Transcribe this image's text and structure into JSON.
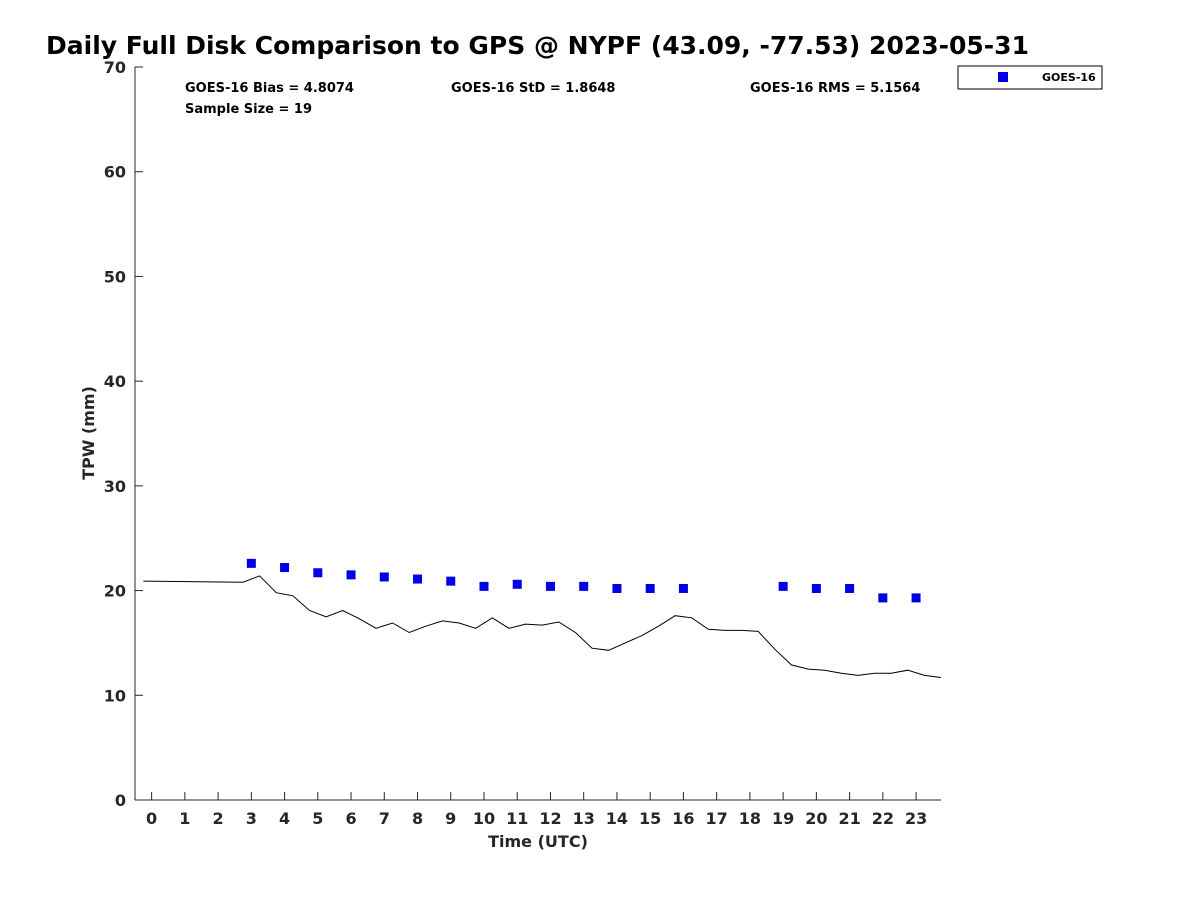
{
  "chart_data": {
    "type": "scatter",
    "title": "Daily Full Disk Comparison to GPS @ NYPF (43.09, -77.53) 2023-05-31",
    "xlabel": "Time (UTC)",
    "ylabel": "TPW (mm)",
    "xlim": [
      -0.5,
      23.75
    ],
    "ylim": [
      0,
      70
    ],
    "x_ticks": [
      0,
      1,
      2,
      3,
      4,
      5,
      6,
      7,
      8,
      9,
      10,
      11,
      12,
      13,
      14,
      15,
      16,
      17,
      18,
      19,
      20,
      21,
      22,
      23
    ],
    "y_ticks": [
      0,
      10,
      20,
      30,
      40,
      50,
      60,
      70
    ],
    "grid": false,
    "legend_position": "top-right (outside plot)",
    "stats": {
      "bias": "GOES-16 Bias = 4.8074",
      "std": "GOES-16 StD = 1.8648",
      "rms": "GOES-16 RMS = 5.1564",
      "sample": "Sample Size = 19"
    },
    "series": [
      {
        "name": "GOES-16",
        "kind": "markers",
        "color": "#0000e6",
        "marker": "square",
        "x": [
          3,
          4,
          5,
          6,
          7,
          8,
          9,
          10,
          11,
          12,
          13,
          14,
          15,
          16,
          19,
          20,
          21,
          22,
          23
        ],
        "y": [
          22.6,
          22.2,
          21.7,
          21.5,
          21.3,
          21.1,
          20.9,
          20.4,
          20.6,
          20.4,
          20.4,
          20.2,
          20.2,
          20.2,
          20.4,
          20.2,
          20.2,
          19.3,
          19.3
        ]
      },
      {
        "kind": "line",
        "color": "#000000",
        "x": [
          -0.25,
          2.75,
          3.25,
          3.75,
          4.25,
          4.75,
          5.25,
          5.75,
          6.25,
          6.75,
          7.25,
          7.75,
          8.25,
          8.75,
          9.25,
          9.75,
          10.25,
          10.75,
          11.25,
          11.75,
          12.25,
          12.75,
          13.25,
          13.75,
          14.25,
          14.75,
          15.25,
          15.75,
          16.25,
          16.75,
          17.25,
          17.75,
          18.25,
          18.75,
          19.25,
          19.75,
          20.25,
          20.75,
          21.25,
          21.75,
          22.25,
          22.75,
          23.25,
          23.75
        ],
        "y": [
          20.9,
          20.8,
          21.4,
          19.8,
          19.5,
          18.1,
          17.5,
          18.1,
          17.3,
          16.4,
          16.9,
          16.0,
          16.6,
          17.1,
          16.9,
          16.4,
          17.4,
          16.4,
          16.8,
          16.7,
          17.0,
          16.0,
          14.5,
          14.3,
          15.0,
          15.7,
          16.6,
          17.6,
          17.4,
          16.3,
          16.2,
          16.2,
          16.1,
          14.4,
          12.9,
          12.5,
          12.4,
          12.1,
          11.9,
          12.1,
          12.1,
          12.4,
          11.9,
          11.7
        ]
      }
    ]
  }
}
